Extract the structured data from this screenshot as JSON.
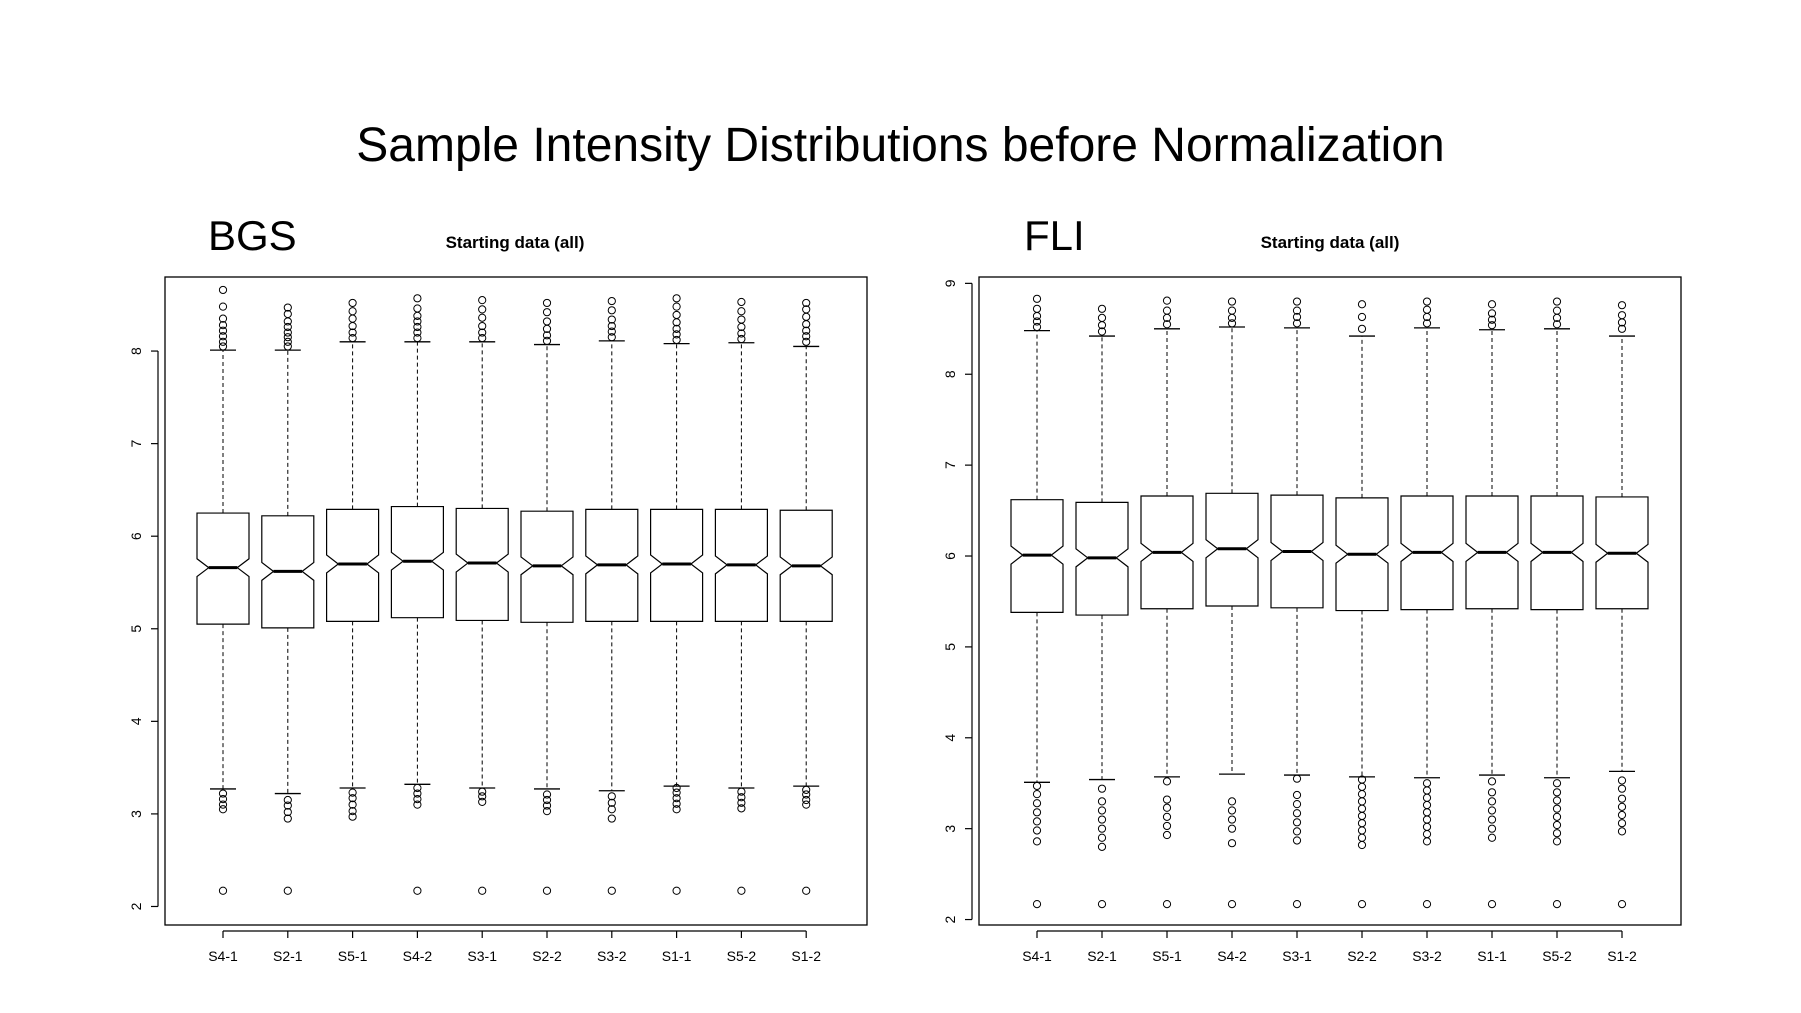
{
  "slide": {
    "title": "Sample Intensity Distributions before Normalization"
  },
  "chart_data": [
    {
      "type": "boxplot",
      "panel_label": "BGS",
      "title": "Starting data (all)",
      "xlabel": "",
      "ylabel": "",
      "ylim": [
        1.8,
        8.8
      ],
      "yticks": [
        2,
        3,
        4,
        5,
        6,
        7,
        8
      ],
      "notched": true,
      "categories": [
        "S4-1",
        "S2-1",
        "S5-1",
        "S4-2",
        "S3-1",
        "S2-2",
        "S3-2",
        "S1-1",
        "S5-2",
        "S1-2"
      ],
      "boxes": [
        {
          "whisker_low": 3.27,
          "q1": 5.05,
          "median": 5.66,
          "q3": 6.25,
          "whisker_high": 8.01,
          "outliers_high": [
            8.05,
            8.1,
            8.16,
            8.22,
            8.28,
            8.35,
            8.48,
            8.66
          ],
          "outliers_low": [
            3.05,
            3.1,
            3.16,
            3.22,
            2.17
          ]
        },
        {
          "whisker_low": 3.22,
          "q1": 5.01,
          "median": 5.62,
          "q3": 6.22,
          "whisker_high": 8.01,
          "outliers_high": [
            8.05,
            8.1,
            8.15,
            8.2,
            8.26,
            8.32,
            8.4,
            8.47
          ],
          "outliers_low": [
            2.95,
            3.02,
            3.09,
            3.15,
            2.17
          ]
        },
        {
          "whisker_low": 3.28,
          "q1": 5.08,
          "median": 5.7,
          "q3": 6.29,
          "whisker_high": 8.1,
          "outliers_high": [
            8.14,
            8.2,
            8.27,
            8.35,
            8.43,
            8.52
          ],
          "outliers_low": [
            2.97,
            3.03,
            3.1,
            3.17,
            3.23
          ]
        },
        {
          "whisker_low": 3.32,
          "q1": 5.12,
          "median": 5.73,
          "q3": 6.32,
          "whisker_high": 8.1,
          "outliers_high": [
            8.14,
            8.2,
            8.26,
            8.32,
            8.38,
            8.46,
            8.57
          ],
          "outliers_low": [
            3.1,
            3.16,
            3.22,
            3.28,
            2.17
          ]
        },
        {
          "whisker_low": 3.28,
          "q1": 5.09,
          "median": 5.71,
          "q3": 6.3,
          "whisker_high": 8.1,
          "outliers_high": [
            8.14,
            8.2,
            8.27,
            8.36,
            8.45,
            8.55
          ],
          "outliers_low": [
            3.13,
            3.19,
            3.24,
            2.17
          ]
        },
        {
          "whisker_low": 3.27,
          "q1": 5.07,
          "median": 5.68,
          "q3": 6.27,
          "whisker_high": 8.07,
          "outliers_high": [
            8.11,
            8.17,
            8.24,
            8.32,
            8.42,
            8.52
          ],
          "outliers_low": [
            3.03,
            3.09,
            3.15,
            3.21,
            2.17
          ]
        },
        {
          "whisker_low": 3.25,
          "q1": 5.08,
          "median": 5.69,
          "q3": 6.29,
          "whisker_high": 8.11,
          "outliers_high": [
            8.15,
            8.21,
            8.27,
            8.34,
            8.44,
            8.54
          ],
          "outliers_low": [
            2.95,
            3.05,
            3.12,
            3.19,
            2.17
          ]
        },
        {
          "whisker_low": 3.3,
          "q1": 5.08,
          "median": 5.7,
          "q3": 6.29,
          "whisker_high": 8.08,
          "outliers_high": [
            8.12,
            8.18,
            8.24,
            8.31,
            8.39,
            8.48,
            8.57
          ],
          "outliers_low": [
            3.05,
            3.11,
            3.17,
            3.23,
            3.28,
            2.17
          ]
        },
        {
          "whisker_low": 3.28,
          "q1": 5.08,
          "median": 5.69,
          "q3": 6.29,
          "whisker_high": 8.09,
          "outliers_high": [
            8.13,
            8.19,
            8.26,
            8.34,
            8.43,
            8.53
          ],
          "outliers_low": [
            3.06,
            3.12,
            3.18,
            3.24,
            2.17
          ]
        },
        {
          "whisker_low": 3.3,
          "q1": 5.08,
          "median": 5.68,
          "q3": 6.28,
          "whisker_high": 8.05,
          "outliers_high": [
            8.1,
            8.16,
            8.22,
            8.29,
            8.37,
            8.45,
            8.52
          ],
          "outliers_low": [
            3.1,
            3.15,
            3.21,
            3.26,
            2.17
          ]
        }
      ]
    },
    {
      "type": "boxplot",
      "panel_label": "FLI",
      "title": "Starting data (all)",
      "xlabel": "",
      "ylabel": "",
      "ylim": [
        1.94,
        9.07
      ],
      "yticks": [
        2,
        3,
        4,
        5,
        6,
        7,
        8,
        9
      ],
      "notched": true,
      "categories": [
        "S4-1",
        "S2-1",
        "S5-1",
        "S4-2",
        "S3-1",
        "S2-2",
        "S3-2",
        "S1-1",
        "S5-2",
        "S1-2"
      ],
      "boxes": [
        {
          "whisker_low": 3.51,
          "q1": 5.38,
          "median": 6.01,
          "q3": 6.62,
          "whisker_high": 8.48,
          "outliers_high": [
            8.52,
            8.58,
            8.64,
            8.72,
            8.83
          ],
          "outliers_low": [
            2.86,
            2.98,
            3.08,
            3.18,
            3.28,
            3.38,
            3.47,
            2.17
          ]
        },
        {
          "whisker_low": 3.54,
          "q1": 5.35,
          "median": 5.98,
          "q3": 6.59,
          "whisker_high": 8.42,
          "outliers_high": [
            8.47,
            8.54,
            8.62,
            8.72
          ],
          "outliers_low": [
            2.8,
            2.9,
            3.0,
            3.1,
            3.2,
            3.3,
            3.44,
            2.17
          ]
        },
        {
          "whisker_low": 3.57,
          "q1": 5.42,
          "median": 6.04,
          "q3": 6.66,
          "whisker_high": 8.5,
          "outliers_high": [
            8.55,
            8.62,
            8.7,
            8.81
          ],
          "outliers_low": [
            2.93,
            3.03,
            3.13,
            3.23,
            3.32,
            3.52,
            2.17
          ]
        },
        {
          "whisker_low": 3.6,
          "q1": 5.45,
          "median": 6.08,
          "q3": 6.69,
          "whisker_high": 8.52,
          "outliers_high": [
            8.56,
            8.62,
            8.7,
            8.8
          ],
          "outliers_low": [
            2.84,
            3.0,
            3.1,
            3.2,
            3.3,
            2.17
          ]
        },
        {
          "whisker_low": 3.59,
          "q1": 5.43,
          "median": 6.05,
          "q3": 6.67,
          "whisker_high": 8.51,
          "outliers_high": [
            8.56,
            8.63,
            8.7,
            8.8
          ],
          "outliers_low": [
            2.87,
            2.97,
            3.07,
            3.17,
            3.27,
            3.37,
            3.55,
            2.17
          ]
        },
        {
          "whisker_low": 3.57,
          "q1": 5.4,
          "median": 6.02,
          "q3": 6.64,
          "whisker_high": 8.42,
          "outliers_high": [
            8.5,
            8.63,
            8.77
          ],
          "outliers_low": [
            2.82,
            2.9,
            2.98,
            3.06,
            3.14,
            3.22,
            3.3,
            3.38,
            3.46,
            3.54,
            2.17
          ]
        },
        {
          "whisker_low": 3.56,
          "q1": 5.41,
          "median": 6.04,
          "q3": 6.66,
          "whisker_high": 8.51,
          "outliers_high": [
            8.56,
            8.63,
            8.71,
            8.8
          ],
          "outliers_low": [
            2.86,
            2.94,
            3.02,
            3.1,
            3.18,
            3.26,
            3.34,
            3.42,
            3.5,
            2.17
          ]
        },
        {
          "whisker_low": 3.59,
          "q1": 5.42,
          "median": 6.04,
          "q3": 6.66,
          "whisker_high": 8.49,
          "outliers_high": [
            8.54,
            8.6,
            8.67,
            8.77
          ],
          "outliers_low": [
            2.9,
            3.0,
            3.1,
            3.2,
            3.3,
            3.4,
            3.52,
            2.17
          ]
        },
        {
          "whisker_low": 3.56,
          "q1": 5.41,
          "median": 6.04,
          "q3": 6.66,
          "whisker_high": 8.5,
          "outliers_high": [
            8.55,
            8.62,
            8.7,
            8.8
          ],
          "outliers_low": [
            2.86,
            2.95,
            3.04,
            3.13,
            3.22,
            3.31,
            3.4,
            3.5,
            2.17
          ]
        },
        {
          "whisker_low": 3.63,
          "q1": 5.42,
          "median": 6.03,
          "q3": 6.65,
          "whisker_high": 8.42,
          "outliers_high": [
            8.5,
            8.57,
            8.65,
            8.76
          ],
          "outliers_low": [
            2.97,
            3.06,
            3.15,
            3.24,
            3.33,
            3.44,
            3.53,
            2.17
          ]
        }
      ]
    }
  ]
}
